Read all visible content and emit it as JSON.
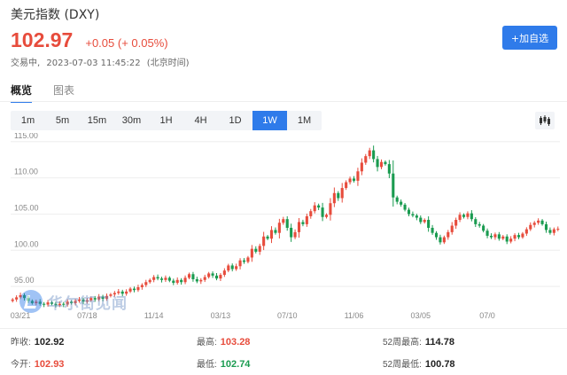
{
  "header": {
    "title": "美元指数 (DXY)",
    "price": "102.97",
    "change": "+0.05 (+ 0.05%)",
    "status": "交易中,",
    "timestamp": "2023-07-03 11:45:22",
    "timezone": "(北京时间)",
    "add_button": "+加自选"
  },
  "view_tabs": [
    {
      "label": "概览",
      "active": true
    },
    {
      "label": "图表",
      "active": false
    }
  ],
  "periods": [
    {
      "label": "1m",
      "active": false
    },
    {
      "label": "5m",
      "active": false
    },
    {
      "label": "15m",
      "active": false
    },
    {
      "label": "30m",
      "active": false
    },
    {
      "label": "1H",
      "active": false
    },
    {
      "label": "4H",
      "active": false
    },
    {
      "label": "1D",
      "active": false
    },
    {
      "label": "1W",
      "active": true
    },
    {
      "label": "1M",
      "active": false
    }
  ],
  "chart_type_icon": "candlestick-icon",
  "chart_data": {
    "type": "candlestick",
    "y_ticks": [
      "115.00",
      "110.00",
      "105.00",
      "100.00",
      "95.00"
    ],
    "y_tick_values": [
      115,
      110,
      105,
      100,
      95
    ],
    "ylim": [
      92.2,
      116.2
    ],
    "x_ticks": [
      {
        "label": "03/21",
        "index": 2
      },
      {
        "label": "07/18",
        "index": 19
      },
      {
        "label": "11/14",
        "index": 36
      },
      {
        "label": "03/13",
        "index": 53
      },
      {
        "label": "07/10",
        "index": 70
      },
      {
        "label": "11/06",
        "index": 87
      },
      {
        "label": "03/05",
        "index": 104
      },
      {
        "label": "07/0",
        "index": 121
      }
    ],
    "up_color": "#e74c3c",
    "down_color": "#1a9b50",
    "grid": true,
    "closes": [
      93.2,
      93.5,
      93.8,
      93.4,
      93.0,
      92.7,
      92.9,
      92.6,
      92.5,
      92.8,
      92.6,
      92.4,
      92.6,
      92.5,
      92.9,
      92.7,
      93.0,
      93.2,
      92.9,
      93.1,
      93.4,
      93.2,
      93.6,
      93.3,
      93.7,
      93.9,
      94.1,
      94.3,
      94.0,
      94.3,
      94.7,
      94.5,
      94.9,
      95.2,
      95.6,
      95.9,
      96.3,
      96.1,
      95.9,
      96.2,
      95.8,
      95.5,
      95.9,
      95.6,
      96.2,
      96.7,
      96.0,
      95.7,
      95.9,
      96.3,
      96.8,
      96.5,
      96.1,
      96.6,
      97.2,
      97.9,
      97.4,
      97.8,
      98.6,
      98.4,
      99.0,
      100.2,
      99.8,
      100.6,
      101.9,
      101.6,
      102.8,
      102.4,
      103.8,
      104.3,
      103.1,
      101.8,
      102.5,
      103.9,
      103.6,
      104.7,
      105.4,
      106.2,
      105.9,
      104.6,
      104.9,
      106.5,
      107.9,
      107.2,
      108.6,
      109.4,
      109.9,
      109.6,
      110.9,
      112.1,
      113.0,
      113.8,
      112.6,
      111.5,
      112.2,
      111.9,
      110.6,
      107.3,
      106.7,
      106.3,
      105.6,
      105.0,
      104.8,
      104.5,
      103.9,
      104.2,
      103.1,
      102.4,
      101.8,
      101.1,
      101.8,
      102.5,
      103.4,
      104.2,
      104.9,
      104.6,
      105.1,
      104.3,
      103.6,
      103.4,
      102.7,
      102.0,
      101.8,
      102.2,
      101.6,
      101.9,
      101.2,
      101.6,
      102.1,
      101.8,
      102.3,
      102.9,
      103.5,
      103.8,
      104.1,
      103.6,
      102.8,
      102.4,
      102.9,
      102.97
    ]
  },
  "stats": {
    "prev_close_label": "昨收:",
    "prev_close": "102.92",
    "open_label": "今开:",
    "open": "102.93",
    "high_label": "最高:",
    "high": "103.28",
    "low_label": "最低:",
    "low": "102.74",
    "high52_label": "52周最高:",
    "high52": "114.78",
    "low52_label": "52周最低:",
    "low52": "100.78"
  },
  "watermark": {
    "text": "华尔街见闻"
  }
}
